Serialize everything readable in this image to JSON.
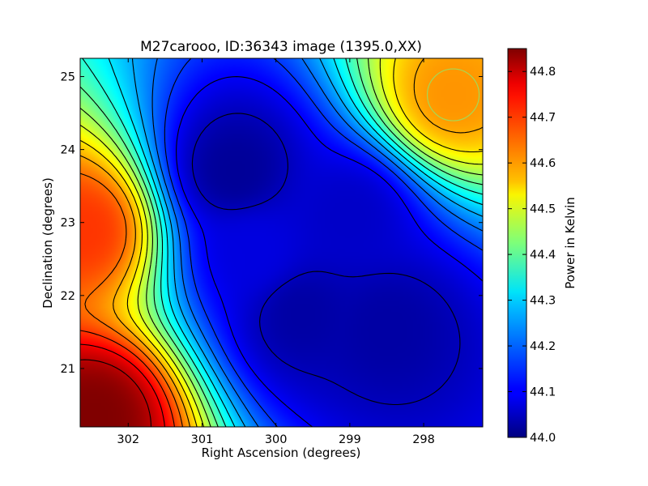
{
  "chart_data": {
    "type": "heatmap",
    "title": "M27carooo, ID:36343 image (1395.0,XX)",
    "xlabel": "Right Ascension (degrees)",
    "ylabel": "Declination (degrees)",
    "xlim": [
      302.65,
      297.2
    ],
    "ylim": [
      20.2,
      25.25
    ],
    "x_ticks": [
      "302",
      "301",
      "300",
      "299",
      "298"
    ],
    "x_tick_values": [
      302,
      301,
      300,
      299,
      298
    ],
    "y_ticks": [
      "21",
      "22",
      "23",
      "24",
      "25"
    ],
    "y_tick_values": [
      21,
      22,
      23,
      24,
      25
    ],
    "colorbar": {
      "label": "Power in Kelvin",
      "range": [
        44.0,
        44.85
      ],
      "colormap": "jet",
      "ticks": [
        "44.0",
        "44.1",
        "44.2",
        "44.3",
        "44.4",
        "44.5",
        "44.6",
        "44.7",
        "44.8"
      ],
      "tick_values": [
        44.0,
        44.1,
        44.2,
        44.3,
        44.4,
        44.5,
        44.6,
        44.7,
        44.8
      ]
    },
    "contours": {
      "color": "#000000",
      "levels": [
        44.05,
        44.1,
        44.15,
        44.2,
        44.25,
        44.3,
        44.35,
        44.4,
        44.45,
        44.5,
        44.55,
        44.6,
        44.65,
        44.7,
        44.75,
        44.8
      ]
    },
    "field_features": [
      {
        "ra": 302.45,
        "dec": 20.35,
        "value": 44.85
      },
      {
        "ra": 302.6,
        "dec": 22.9,
        "value": 44.7
      },
      {
        "ra": 297.6,
        "dec": 24.75,
        "value": 44.62
      },
      {
        "ra": 300.55,
        "dec": 23.7,
        "value": 44.02
      },
      {
        "ra": 299.65,
        "dec": 21.75,
        "value": 44.03
      },
      {
        "ra": 298.5,
        "dec": 21.55,
        "value": 44.03
      },
      {
        "ra": 299.0,
        "dec": 23.1,
        "value": 44.06
      },
      {
        "ra": 300.3,
        "dec": 22.6,
        "value": 44.08
      }
    ],
    "markers": [
      {
        "shape": "circle",
        "ra": 297.6,
        "dec": 24.75,
        "color": "#a6d854"
      }
    ]
  }
}
